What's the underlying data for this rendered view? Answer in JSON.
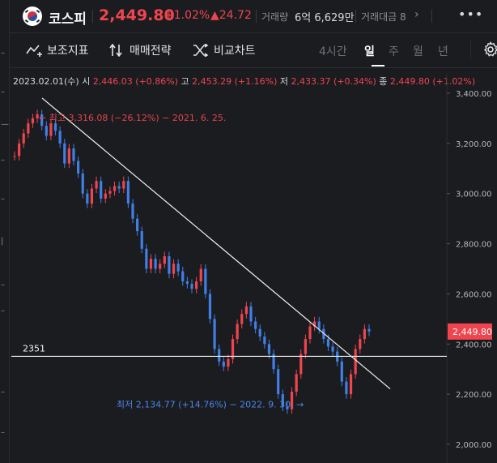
{
  "header": {
    "name": "코스피",
    "price": "2,449.80",
    "change_pct": "+1.02%",
    "change_abs": "▲24.72",
    "volume_label": "거래량",
    "volume_value": "6억 6,629만",
    "amount_label": "거래대금 8",
    "more_label": "•••"
  },
  "toolbar": {
    "indicators": "보조지표",
    "strategy": "매매전략",
    "compare": "비교차트",
    "tabs": [
      {
        "label": "4시간",
        "active": false
      },
      {
        "label": "일",
        "active": true
      },
      {
        "label": "주",
        "active": false
      },
      {
        "label": "월",
        "active": false
      },
      {
        "label": "년",
        "active": false
      }
    ]
  },
  "ohlc": {
    "date": "2023.02.01(수)",
    "open_label": "시",
    "open": "2,446.03 (+0.86%)",
    "high_label": "고",
    "high": "2,453.29 (+1.16%)",
    "low_label": "저",
    "low": "2,433.37 (+0.34%)",
    "close_label": "종",
    "close": "2,449.80 (+1.02%)"
  },
  "colors": {
    "up": "#f0454e",
    "down": "#3f7fe6",
    "bg": "#1b1c20"
  },
  "chart_data": {
    "type": "candlestick",
    "ylim": [
      2000,
      3400
    ],
    "y_ticks": [
      "3,400.00",
      "3,200.00",
      "3,000.00",
      "2,800.00",
      "2,600.00",
      "2,400.00",
      "2,200.00",
      "2,000.00"
    ],
    "current_price_label": "2,449.80",
    "current_price": 2449.8,
    "support_line": {
      "label": "2351",
      "value": 2351
    },
    "trendline": {
      "from": {
        "date": "2021.06.25",
        "value": 3316.08
      },
      "to": {
        "date": "2023.02.01",
        "value": 2260
      }
    },
    "annotations": {
      "high": "← 최고 3,316.08 (−26.12%) − 2021. 6. 25.",
      "low": "최저 2,134.77 (+14.76%) − 2022. 9. 30. →"
    },
    "series": [
      {
        "values": [
          3150,
          3200,
          3240,
          3280,
          3300,
          3316,
          3270,
          3230,
          3280,
          3250,
          3200,
          3120,
          3180,
          3130,
          3080,
          3000,
          2960,
          3020,
          3050,
          2980,
          3000,
          3010,
          3030,
          3020,
          3050,
          2960,
          2900,
          2850,
          2780,
          2700,
          2740,
          2700,
          2720,
          2750,
          2680,
          2720,
          2690,
          2650,
          2640,
          2620,
          2650,
          2700,
          2600,
          2500,
          2380,
          2330,
          2310,
          2340,
          2420,
          2480,
          2520,
          2550,
          2490,
          2460,
          2430,
          2400,
          2360,
          2300,
          2200,
          2150,
          2140,
          2210,
          2280,
          2360,
          2420,
          2470,
          2490,
          2460,
          2420,
          2390,
          2370,
          2330,
          2250,
          2200,
          2280,
          2380,
          2420,
          2460,
          2449.8
        ]
      }
    ]
  }
}
